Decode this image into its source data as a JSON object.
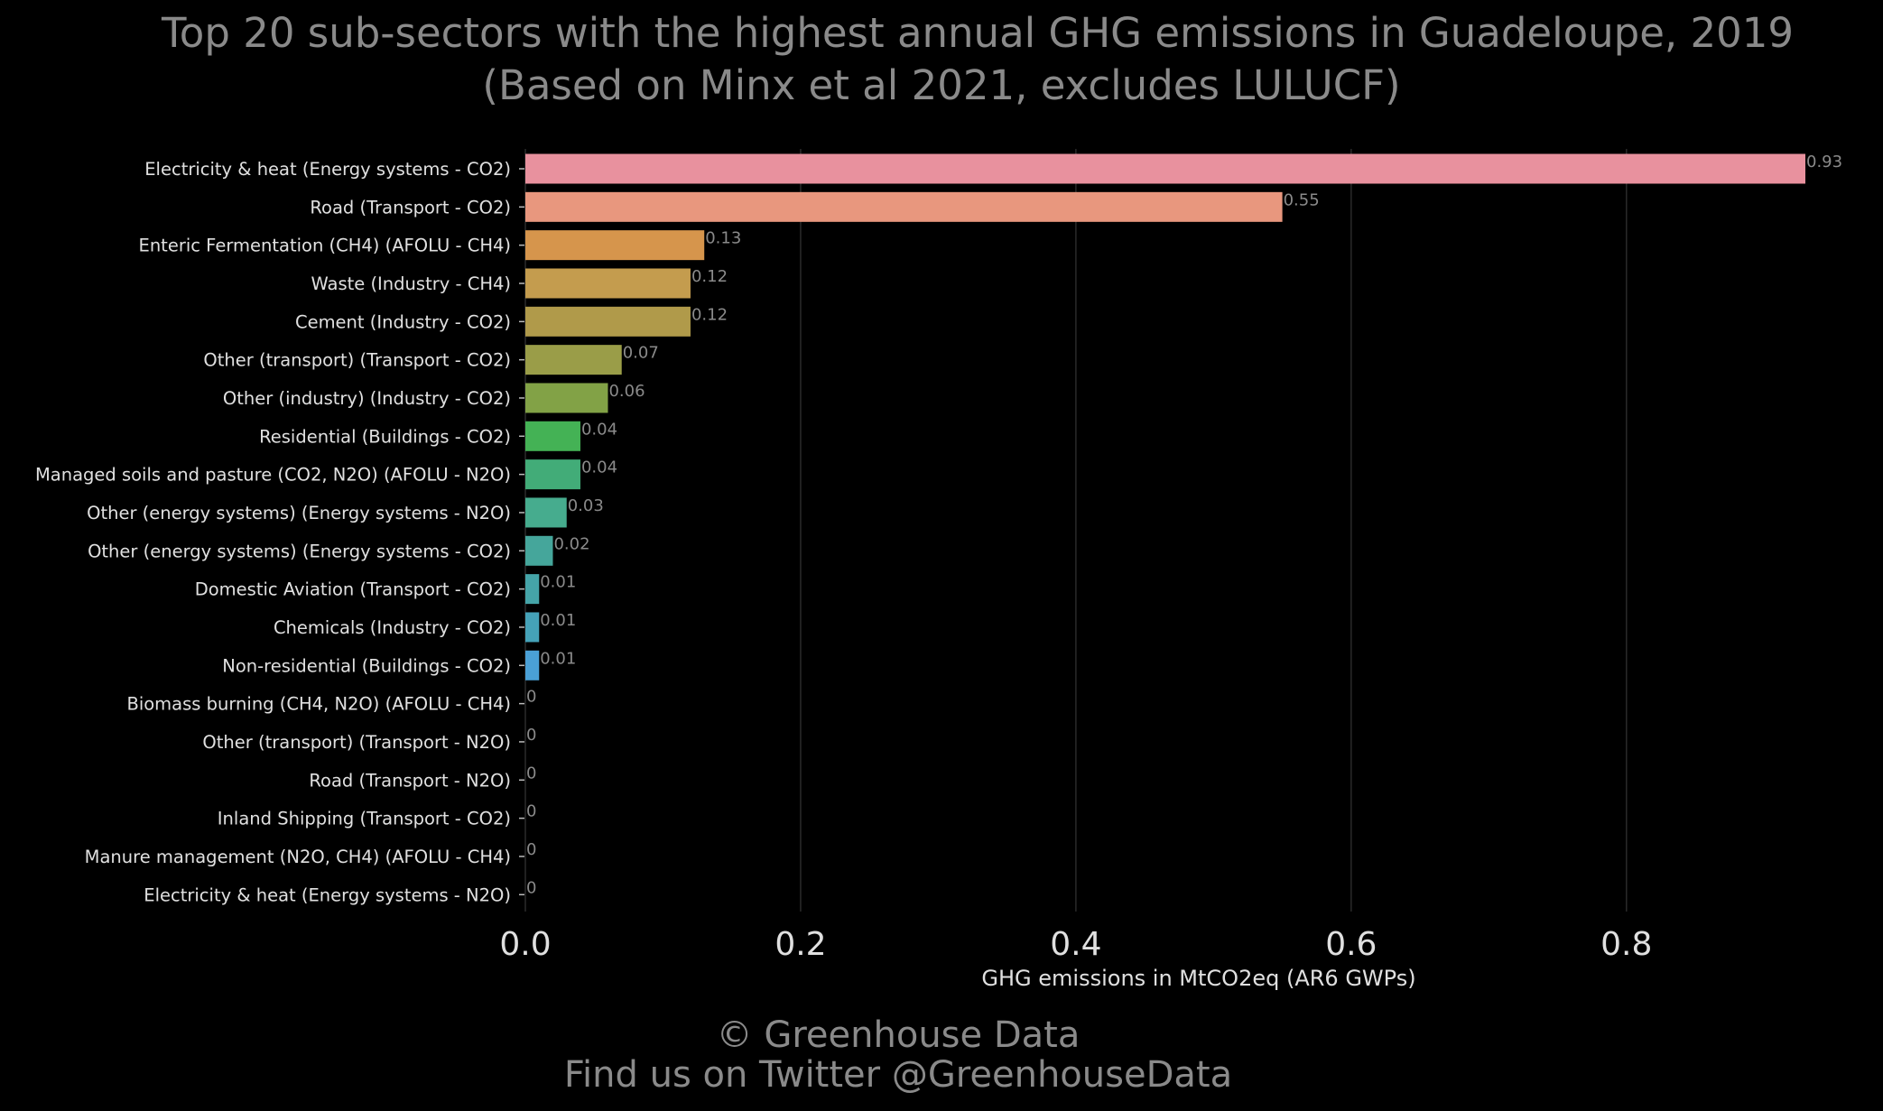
{
  "chart_data": {
    "type": "bar",
    "orientation": "horizontal",
    "title": "Top 20 sub-sectors with the highest annual GHG emissions in Guadeloupe, 2019",
    "subtitle": "(Based on Minx et al 2021, excludes LULUCF)",
    "xlabel": "GHG emissions in MtCO2eq (AR6 GWPs)",
    "ylabel": "",
    "xlim": [
      0,
      0.93
    ],
    "xticks": [
      "0.0",
      "0.2",
      "0.4",
      "0.6",
      "0.8"
    ],
    "grid": "vertical",
    "legend": "none",
    "categories": [
      "Electricity & heat (Energy systems - CO2)",
      "Road (Transport - CO2)",
      "Enteric Fermentation (CH4) (AFOLU - CH4)",
      "Waste (Industry - CH4)",
      "Cement (Industry - CO2)",
      "Other (transport) (Transport - CO2)",
      "Other (industry) (Industry - CO2)",
      "Residential (Buildings - CO2)",
      "Managed soils and pasture (CO2, N2O) (AFOLU - N2O)",
      "Other (energy systems) (Energy systems - N2O)",
      "Other (energy systems) (Energy systems - CO2)",
      "Domestic Aviation (Transport - CO2)",
      "Chemicals (Industry - CO2)",
      "Non-residential (Buildings - CO2)",
      "Biomass burning (CH4, N2O) (AFOLU - CH4)",
      "Other (transport) (Transport - N2O)",
      "Road (Transport - N2O)",
      "Inland Shipping (Transport - CO2)",
      "Manure management (N2O, CH4) (AFOLU - CH4)",
      "Electricity & heat (Energy systems - N2O)"
    ],
    "values": [
      0.93,
      0.55,
      0.13,
      0.12,
      0.12,
      0.07,
      0.06,
      0.04,
      0.04,
      0.03,
      0.02,
      0.01,
      0.01,
      0.01,
      0,
      0,
      0,
      0,
      0,
      0
    ],
    "value_labels": [
      "0.93",
      "0.55",
      "0.13",
      "0.12",
      "0.12",
      "0.07",
      "0.06",
      "0.04",
      "0.04",
      "0.03",
      "0.02",
      "0.01",
      "0.01",
      "0.01",
      "0",
      "0",
      "0",
      "0",
      "0",
      "0"
    ],
    "bar_colors": [
      "#e8919e",
      "#e8977e",
      "#d6954c",
      "#c49c4e",
      "#b09a4a",
      "#9a9d48",
      "#82a246",
      "#44b255",
      "#42ac78",
      "#46ac8e",
      "#45a69b",
      "#45a4a8",
      "#45a2b8",
      "#4aa0d6",
      "#58a0e0",
      "#7a9ae4",
      "#9b90e0",
      "#b88ad6",
      "#d08acb",
      "#e08fb8"
    ]
  },
  "colors": {
    "background": "#000000",
    "title_text": "#8a8a8a",
    "axis_text": "#e0e0e0",
    "value_label_text": "#8a8a8a",
    "gridline": "#2a2a2a"
  },
  "footer": {
    "copyright": "© Greenhouse Data",
    "twitter": "Find us on Twitter @GreenhouseData"
  }
}
